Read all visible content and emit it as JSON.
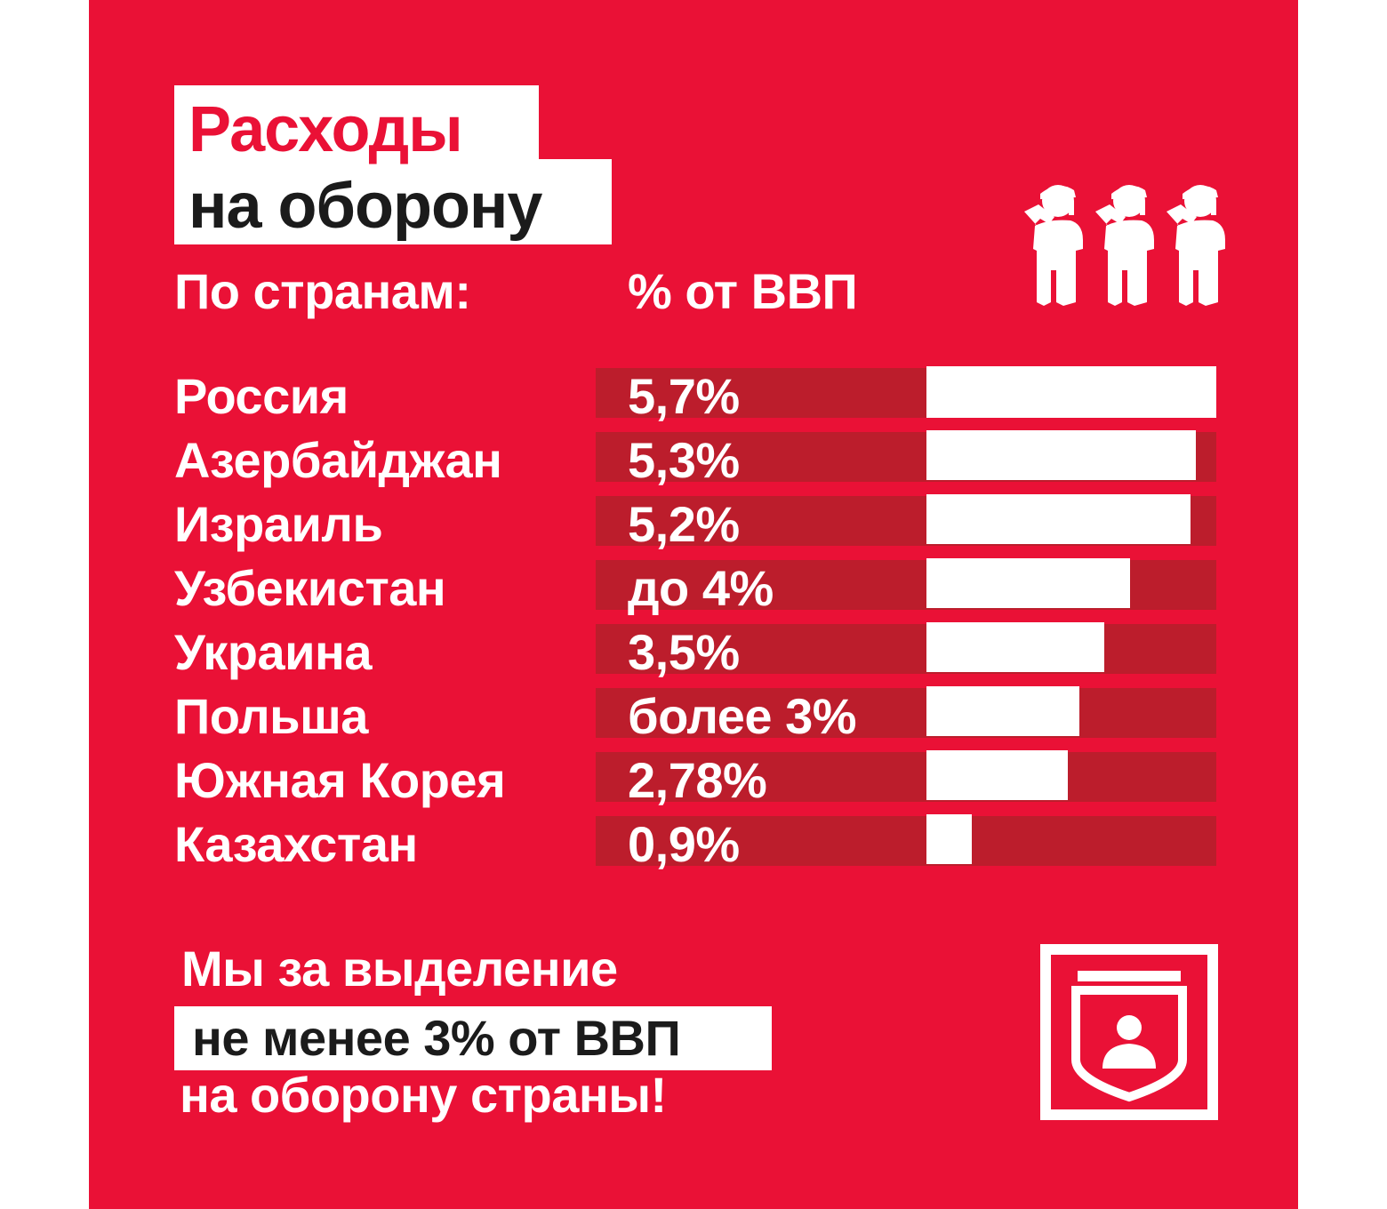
{
  "title": {
    "line1": "Расходы",
    "line2": "на оборону"
  },
  "headers": {
    "countries": "По странам:",
    "gdp": "% от ВВП"
  },
  "chart_data": {
    "type": "bar",
    "orientation": "horizontal",
    "categories": [
      "Россия",
      "Азербайджан",
      "Израиль",
      "Узбекистан",
      "Украина",
      "Польша",
      "Южная Корея",
      "Казахстан"
    ],
    "labels": [
      "5,7%",
      "5,3%",
      "5,2%",
      "до 4%",
      "3,5%",
      "более 3%",
      "2,78%",
      "0,9%"
    ],
    "values": [
      5.7,
      5.3,
      5.2,
      4.0,
      3.5,
      3.0,
      2.78,
      0.9
    ],
    "xlim": [
      0,
      5.7
    ],
    "colors": {
      "bar": "#ffffff",
      "track": "#bc1d2c",
      "background": "#ea1136"
    }
  },
  "footer": {
    "line1": "Мы за выделение",
    "line2": "не менее 3% от ВВП",
    "line3": "на оборону страны!"
  },
  "icons": {
    "soldiers": "saluting-soldier-icon",
    "emblem": "shield-emblem-icon"
  }
}
